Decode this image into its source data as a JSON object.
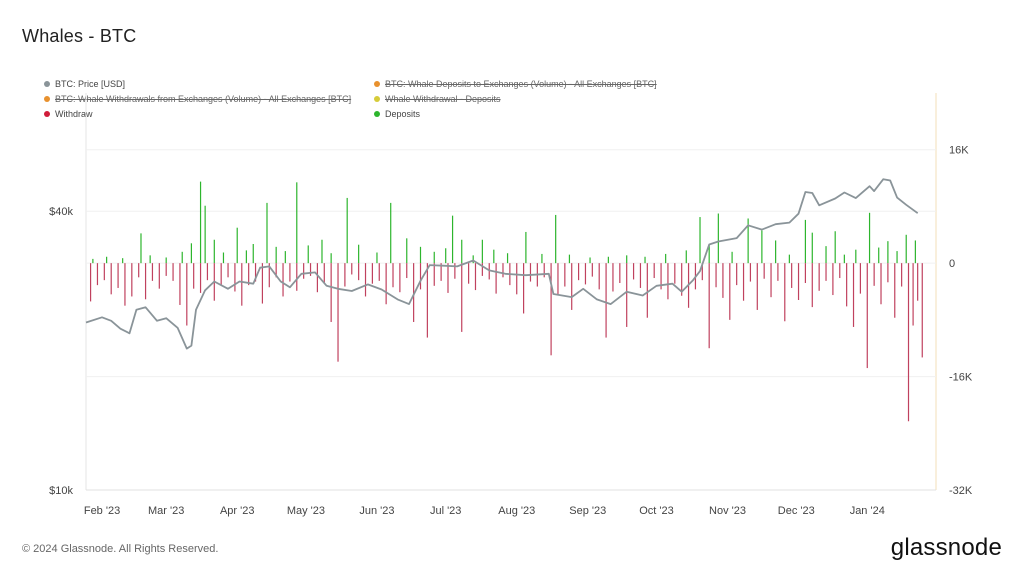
{
  "title": "Whales - BTC",
  "legend": [
    {
      "label": "BTC: Price [USD]",
      "color": "#8a9499",
      "active": true
    },
    {
      "label": "BTC: Whale Deposits to Exchanges (Volume) - All Exchanges [BTC]",
      "color": "#e8912e",
      "active": false
    },
    {
      "label": "BTC: Whale Withdrawals from Exchanges (Volume) - All Exchanges [BTC]",
      "color": "#e8912e",
      "active": false
    },
    {
      "label": "Whale Withdrawal - Deposits",
      "color": "#d6cc3a",
      "active": false
    },
    {
      "label": "Withdraw",
      "color": "#d01c3a",
      "active": true
    },
    {
      "label": "Deposits",
      "color": "#2db52d",
      "active": true
    }
  ],
  "footer": "© 2024 Glassnode. All Rights Reserved.",
  "brand": "glassnode",
  "chart_data": {
    "type": "line+bar",
    "x_tick_labels": [
      "Feb '23",
      "Mar '23",
      "Apr '23",
      "May '23",
      "Jun '23",
      "Jul '23",
      "Aug '23",
      "Sep '23",
      "Oct '23",
      "Nov '23",
      "Dec '23",
      "Jan '24"
    ],
    "x_range": [
      "2023-01-25",
      "2024-01-31"
    ],
    "left_axis": {
      "label": "Price [USD]",
      "scale": "log",
      "ticks": [
        {
          "value": 40000,
          "label": "$40k"
        },
        {
          "value": 10000,
          "label": "$10k"
        }
      ],
      "range": [
        10000,
        72000
      ]
    },
    "right_axis": {
      "ticks": [
        {
          "value": 16000,
          "label": "16K"
        },
        {
          "value": 0,
          "label": "0"
        },
        {
          "value": -16000,
          "label": "-16K"
        },
        {
          "value": -32000,
          "label": "-32K"
        }
      ],
      "range": [
        -32000,
        24000
      ]
    },
    "grid": true,
    "price_series": {
      "name": "BTC: Price [USD]",
      "color": "#8a9499",
      "points": [
        [
          "2023-01-25",
          23000
        ],
        [
          "2023-02-01",
          23600
        ],
        [
          "2023-02-05",
          23200
        ],
        [
          "2023-02-09",
          22300
        ],
        [
          "2023-02-13",
          21800
        ],
        [
          "2023-02-16",
          24500
        ],
        [
          "2023-02-20",
          24800
        ],
        [
          "2023-02-25",
          23200
        ],
        [
          "2023-03-01",
          23500
        ],
        [
          "2023-03-06",
          22400
        ],
        [
          "2023-03-10",
          20200
        ],
        [
          "2023-03-12",
          20500
        ],
        [
          "2023-03-14",
          24500
        ],
        [
          "2023-03-18",
          27000
        ],
        [
          "2023-03-22",
          28200
        ],
        [
          "2023-03-28",
          27200
        ],
        [
          "2023-04-02",
          28200
        ],
        [
          "2023-04-08",
          27900
        ],
        [
          "2023-04-11",
          30200
        ],
        [
          "2023-04-15",
          30400
        ],
        [
          "2023-04-20",
          28200
        ],
        [
          "2023-04-24",
          27400
        ],
        [
          "2023-04-29",
          29300
        ],
        [
          "2023-05-05",
          29500
        ],
        [
          "2023-05-10",
          27600
        ],
        [
          "2023-05-15",
          27200
        ],
        [
          "2023-05-21",
          26900
        ],
        [
          "2023-05-28",
          27800
        ],
        [
          "2023-06-03",
          27100
        ],
        [
          "2023-06-10",
          25800
        ],
        [
          "2023-06-15",
          25200
        ],
        [
          "2023-06-20",
          28300
        ],
        [
          "2023-06-24",
          30600
        ],
        [
          "2023-06-30",
          30500
        ],
        [
          "2023-07-06",
          30400
        ],
        [
          "2023-07-13",
          31300
        ],
        [
          "2023-07-20",
          29800
        ],
        [
          "2023-07-27",
          29300
        ],
        [
          "2023-08-05",
          29100
        ],
        [
          "2023-08-15",
          29300
        ],
        [
          "2023-08-17",
          26500
        ],
        [
          "2023-08-25",
          26100
        ],
        [
          "2023-08-30",
          27200
        ],
        [
          "2023-09-05",
          25800
        ],
        [
          "2023-09-11",
          25200
        ],
        [
          "2023-09-18",
          26800
        ],
        [
          "2023-09-25",
          26300
        ],
        [
          "2023-10-01",
          27600
        ],
        [
          "2023-10-08",
          27900
        ],
        [
          "2023-10-12",
          26800
        ],
        [
          "2023-10-17",
          28400
        ],
        [
          "2023-10-20",
          29700
        ],
        [
          "2023-10-24",
          33900
        ],
        [
          "2023-10-28",
          34400
        ],
        [
          "2023-11-05",
          35000
        ],
        [
          "2023-11-10",
          37300
        ],
        [
          "2023-11-16",
          36500
        ],
        [
          "2023-11-22",
          37500
        ],
        [
          "2023-11-28",
          37800
        ],
        [
          "2023-12-02",
          39500
        ],
        [
          "2023-12-05",
          44000
        ],
        [
          "2023-12-08",
          43800
        ],
        [
          "2023-12-11",
          41200
        ],
        [
          "2023-12-18",
          42600
        ],
        [
          "2023-12-22",
          43900
        ],
        [
          "2023-12-27",
          42700
        ],
        [
          "2024-01-02",
          45300
        ],
        [
          "2024-01-04",
          44200
        ],
        [
          "2024-01-08",
          46900
        ],
        [
          "2024-01-11",
          46600
        ],
        [
          "2024-01-14",
          42800
        ],
        [
          "2024-01-18",
          41300
        ],
        [
          "2024-01-23",
          39600
        ]
      ]
    },
    "deposits_series": {
      "name": "Deposits",
      "color": "#2db52d",
      "points": [
        [
          "2023-01-28",
          600
        ],
        [
          "2023-02-03",
          900
        ],
        [
          "2023-02-10",
          700
        ],
        [
          "2023-02-18",
          4200
        ],
        [
          "2023-02-22",
          1100
        ],
        [
          "2023-03-01",
          800
        ],
        [
          "2023-03-08",
          1600
        ],
        [
          "2023-03-12",
          2800
        ],
        [
          "2023-03-16",
          11500
        ],
        [
          "2023-03-18",
          8100
        ],
        [
          "2023-03-22",
          3300
        ],
        [
          "2023-03-26",
          1500
        ],
        [
          "2023-04-01",
          5000
        ],
        [
          "2023-04-05",
          1800
        ],
        [
          "2023-04-08",
          2700
        ],
        [
          "2023-04-14",
          8500
        ],
        [
          "2023-04-18",
          2300
        ],
        [
          "2023-04-22",
          1700
        ],
        [
          "2023-04-27",
          11400
        ],
        [
          "2023-05-02",
          2500
        ],
        [
          "2023-05-08",
          3300
        ],
        [
          "2023-05-12",
          1400
        ],
        [
          "2023-05-19",
          9200
        ],
        [
          "2023-05-24",
          2600
        ],
        [
          "2023-06-01",
          1500
        ],
        [
          "2023-06-07",
          8500
        ],
        [
          "2023-06-14",
          3500
        ],
        [
          "2023-06-20",
          2300
        ],
        [
          "2023-06-26",
          1600
        ],
        [
          "2023-07-01",
          2100
        ],
        [
          "2023-07-04",
          6700
        ],
        [
          "2023-07-08",
          3300
        ],
        [
          "2023-07-13",
          1100
        ],
        [
          "2023-07-17",
          3300
        ],
        [
          "2023-07-22",
          1900
        ],
        [
          "2023-07-28",
          1400
        ],
        [
          "2023-08-05",
          4400
        ],
        [
          "2023-08-12",
          1300
        ],
        [
          "2023-08-18",
          6800
        ],
        [
          "2023-08-24",
          1200
        ],
        [
          "2023-09-02",
          800
        ],
        [
          "2023-09-10",
          900
        ],
        [
          "2023-09-18",
          1100
        ],
        [
          "2023-09-26",
          900
        ],
        [
          "2023-10-05",
          1300
        ],
        [
          "2023-10-14",
          1800
        ],
        [
          "2023-10-20",
          6500
        ],
        [
          "2023-10-24",
          2600
        ],
        [
          "2023-10-28",
          7000
        ],
        [
          "2023-11-03",
          1600
        ],
        [
          "2023-11-10",
          6300
        ],
        [
          "2023-11-16",
          4600
        ],
        [
          "2023-11-22",
          3200
        ],
        [
          "2023-11-28",
          1200
        ],
        [
          "2023-12-05",
          6100
        ],
        [
          "2023-12-08",
          4300
        ],
        [
          "2023-12-14",
          2400
        ],
        [
          "2023-12-18",
          4500
        ],
        [
          "2023-12-22",
          1200
        ],
        [
          "2023-12-27",
          1900
        ],
        [
          "2024-01-02",
          7100
        ],
        [
          "2024-01-06",
          2200
        ],
        [
          "2024-01-10",
          3100
        ],
        [
          "2024-01-14",
          1700
        ],
        [
          "2024-01-18",
          4000
        ],
        [
          "2024-01-22",
          3200
        ]
      ]
    },
    "withdraw_series": {
      "name": "Withdraw",
      "color": "#c0415e",
      "points": [
        [
          "2023-01-27",
          -5400
        ],
        [
          "2023-01-30",
          -3100
        ],
        [
          "2023-02-02",
          -2400
        ],
        [
          "2023-02-05",
          -4400
        ],
        [
          "2023-02-08",
          -3500
        ],
        [
          "2023-02-11",
          -6000
        ],
        [
          "2023-02-14",
          -4700
        ],
        [
          "2023-02-17",
          -2000
        ],
        [
          "2023-02-20",
          -5100
        ],
        [
          "2023-02-23",
          -2500
        ],
        [
          "2023-02-26",
          -3600
        ],
        [
          "2023-03-01",
          -1800
        ],
        [
          "2023-03-04",
          -2500
        ],
        [
          "2023-03-07",
          -5900
        ],
        [
          "2023-03-10",
          -8800
        ],
        [
          "2023-03-13",
          -3600
        ],
        [
          "2023-03-16",
          -4200
        ],
        [
          "2023-03-19",
          -2400
        ],
        [
          "2023-03-22",
          -5300
        ],
        [
          "2023-03-25",
          -3100
        ],
        [
          "2023-03-28",
          -2000
        ],
        [
          "2023-03-31",
          -4000
        ],
        [
          "2023-04-03",
          -6000
        ],
        [
          "2023-04-06",
          -3100
        ],
        [
          "2023-04-09",
          -2600
        ],
        [
          "2023-04-12",
          -5700
        ],
        [
          "2023-04-15",
          -3400
        ],
        [
          "2023-04-18",
          -2000
        ],
        [
          "2023-04-21",
          -4700
        ],
        [
          "2023-04-24",
          -2600
        ],
        [
          "2023-04-27",
          -3900
        ],
        [
          "2023-04-30",
          -2200
        ],
        [
          "2023-05-03",
          -1800
        ],
        [
          "2023-05-06",
          -4100
        ],
        [
          "2023-05-09",
          -2800
        ],
        [
          "2023-05-12",
          -8300
        ],
        [
          "2023-05-15",
          -13900
        ],
        [
          "2023-05-18",
          -3300
        ],
        [
          "2023-05-21",
          -1600
        ],
        [
          "2023-05-24",
          -2400
        ],
        [
          "2023-05-27",
          -4700
        ],
        [
          "2023-05-30",
          -2900
        ],
        [
          "2023-06-02",
          -2500
        ],
        [
          "2023-06-05",
          -5800
        ],
        [
          "2023-06-08",
          -3400
        ],
        [
          "2023-06-11",
          -4100
        ],
        [
          "2023-06-14",
          -2100
        ],
        [
          "2023-06-17",
          -8300
        ],
        [
          "2023-06-20",
          -3700
        ],
        [
          "2023-06-23",
          -10500
        ],
        [
          "2023-06-26",
          -3200
        ],
        [
          "2023-06-29",
          -2500
        ],
        [
          "2023-07-02",
          -4200
        ],
        [
          "2023-07-05",
          -2200
        ],
        [
          "2023-07-08",
          -9700
        ],
        [
          "2023-07-11",
          -2900
        ],
        [
          "2023-07-14",
          -3800
        ],
        [
          "2023-07-17",
          -1800
        ],
        [
          "2023-07-20",
          -2300
        ],
        [
          "2023-07-23",
          -4300
        ],
        [
          "2023-07-26",
          -2000
        ],
        [
          "2023-07-29",
          -3100
        ],
        [
          "2023-08-01",
          -4400
        ],
        [
          "2023-08-04",
          -7100
        ],
        [
          "2023-08-07",
          -2600
        ],
        [
          "2023-08-10",
          -3300
        ],
        [
          "2023-08-13",
          -2000
        ],
        [
          "2023-08-16",
          -13000
        ],
        [
          "2023-08-19",
          -4500
        ],
        [
          "2023-08-22",
          -3300
        ],
        [
          "2023-08-25",
          -6600
        ],
        [
          "2023-08-28",
          -2400
        ],
        [
          "2023-08-31",
          -3000
        ],
        [
          "2023-09-03",
          -1900
        ],
        [
          "2023-09-06",
          -3700
        ],
        [
          "2023-09-09",
          -10500
        ],
        [
          "2023-09-12",
          -4000
        ],
        [
          "2023-09-15",
          -2800
        ],
        [
          "2023-09-18",
          -9000
        ],
        [
          "2023-09-21",
          -2300
        ],
        [
          "2023-09-24",
          -3500
        ],
        [
          "2023-09-27",
          -7700
        ],
        [
          "2023-09-30",
          -2100
        ],
        [
          "2023-10-03",
          -3700
        ],
        [
          "2023-10-06",
          -5100
        ],
        [
          "2023-10-09",
          -2900
        ],
        [
          "2023-10-12",
          -4600
        ],
        [
          "2023-10-15",
          -6300
        ],
        [
          "2023-10-18",
          -3700
        ],
        [
          "2023-10-21",
          -2400
        ],
        [
          "2023-10-24",
          -12000
        ],
        [
          "2023-10-27",
          -3400
        ],
        [
          "2023-10-30",
          -4900
        ],
        [
          "2023-11-02",
          -8000
        ],
        [
          "2023-11-05",
          -3100
        ],
        [
          "2023-11-08",
          -5300
        ],
        [
          "2023-11-11",
          -2600
        ],
        [
          "2023-11-14",
          -6600
        ],
        [
          "2023-11-17",
          -2200
        ],
        [
          "2023-11-20",
          -4800
        ],
        [
          "2023-11-23",
          -2500
        ],
        [
          "2023-11-26",
          -8200
        ],
        [
          "2023-11-29",
          -3500
        ],
        [
          "2023-12-02",
          -5200
        ],
        [
          "2023-12-05",
          -2800
        ],
        [
          "2023-12-08",
          -6200
        ],
        [
          "2023-12-11",
          -3900
        ],
        [
          "2023-12-14",
          -2500
        ],
        [
          "2023-12-17",
          -4500
        ],
        [
          "2023-12-20",
          -2100
        ],
        [
          "2023-12-23",
          -6100
        ],
        [
          "2023-12-26",
          -9000
        ],
        [
          "2023-12-29",
          -4300
        ],
        [
          "2024-01-01",
          -14800
        ],
        [
          "2024-01-04",
          -3200
        ],
        [
          "2024-01-07",
          -5800
        ],
        [
          "2024-01-10",
          -2700
        ],
        [
          "2024-01-13",
          -7700
        ],
        [
          "2024-01-16",
          -3300
        ],
        [
          "2024-01-19",
          -22300
        ],
        [
          "2024-01-21",
          -8800
        ],
        [
          "2024-01-23",
          -5300
        ],
        [
          "2024-01-25",
          -13300
        ]
      ]
    }
  }
}
